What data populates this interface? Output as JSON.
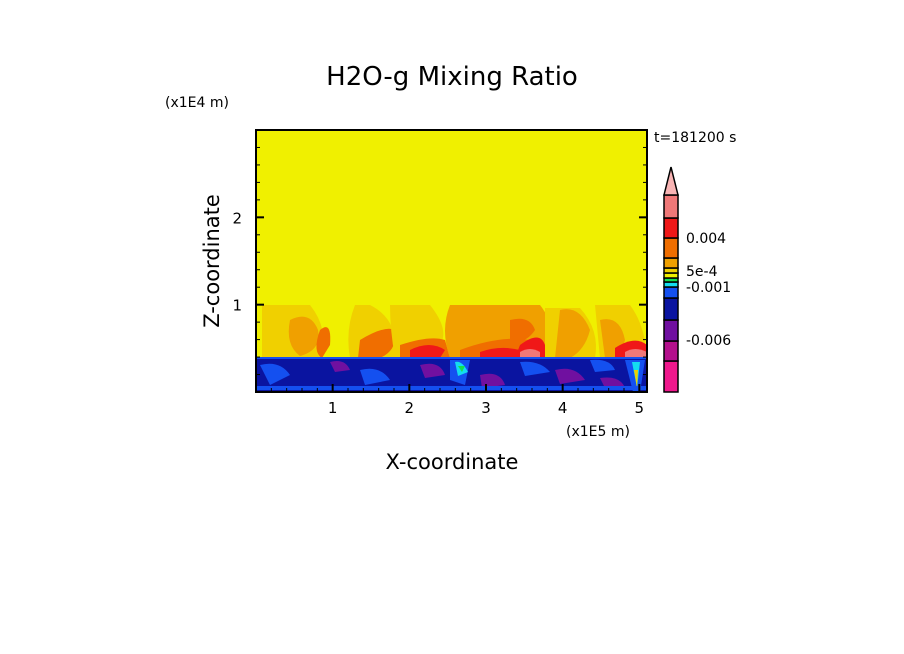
{
  "chart_data": {
    "type": "heatmap",
    "title": "H2O-g Mixing Ratio",
    "xlabel": "X-coordinate",
    "ylabel": "Z-coordinate",
    "x_scale_label": "(x1E5 m)",
    "y_scale_label": "(x1E4 m)",
    "time_label": "t=181200 s",
    "xlim": [
      0,
      5.1
    ],
    "ylim": [
      0,
      3.0
    ],
    "xticks": [
      "1",
      "2",
      "3",
      "4",
      "5"
    ],
    "xtick_values": [
      1,
      2,
      3,
      4,
      5
    ],
    "yticks": [
      "1",
      "2"
    ],
    "ytick_values": [
      1,
      2
    ],
    "colorbar": {
      "colors": [
        "#f0188c",
        "#b4108c",
        "#7010a0",
        "#0a14a0",
        "#1450f0",
        "#14dcf0",
        "#14e050",
        "#f0f000",
        "#f0d000",
        "#f0a000",
        "#f06e00",
        "#f01818",
        "#f07878",
        "#f8b4b4"
      ],
      "labels": [
        "0.004",
        "5e-4",
        "-0.001",
        "-0.006"
      ],
      "label_levels": [
        0.004,
        0.0005,
        -0.001,
        -0.006
      ]
    },
    "background_color": "#f0f000",
    "anomaly_layer_top": 0.4,
    "disturbance_layer_top": 1.0
  }
}
